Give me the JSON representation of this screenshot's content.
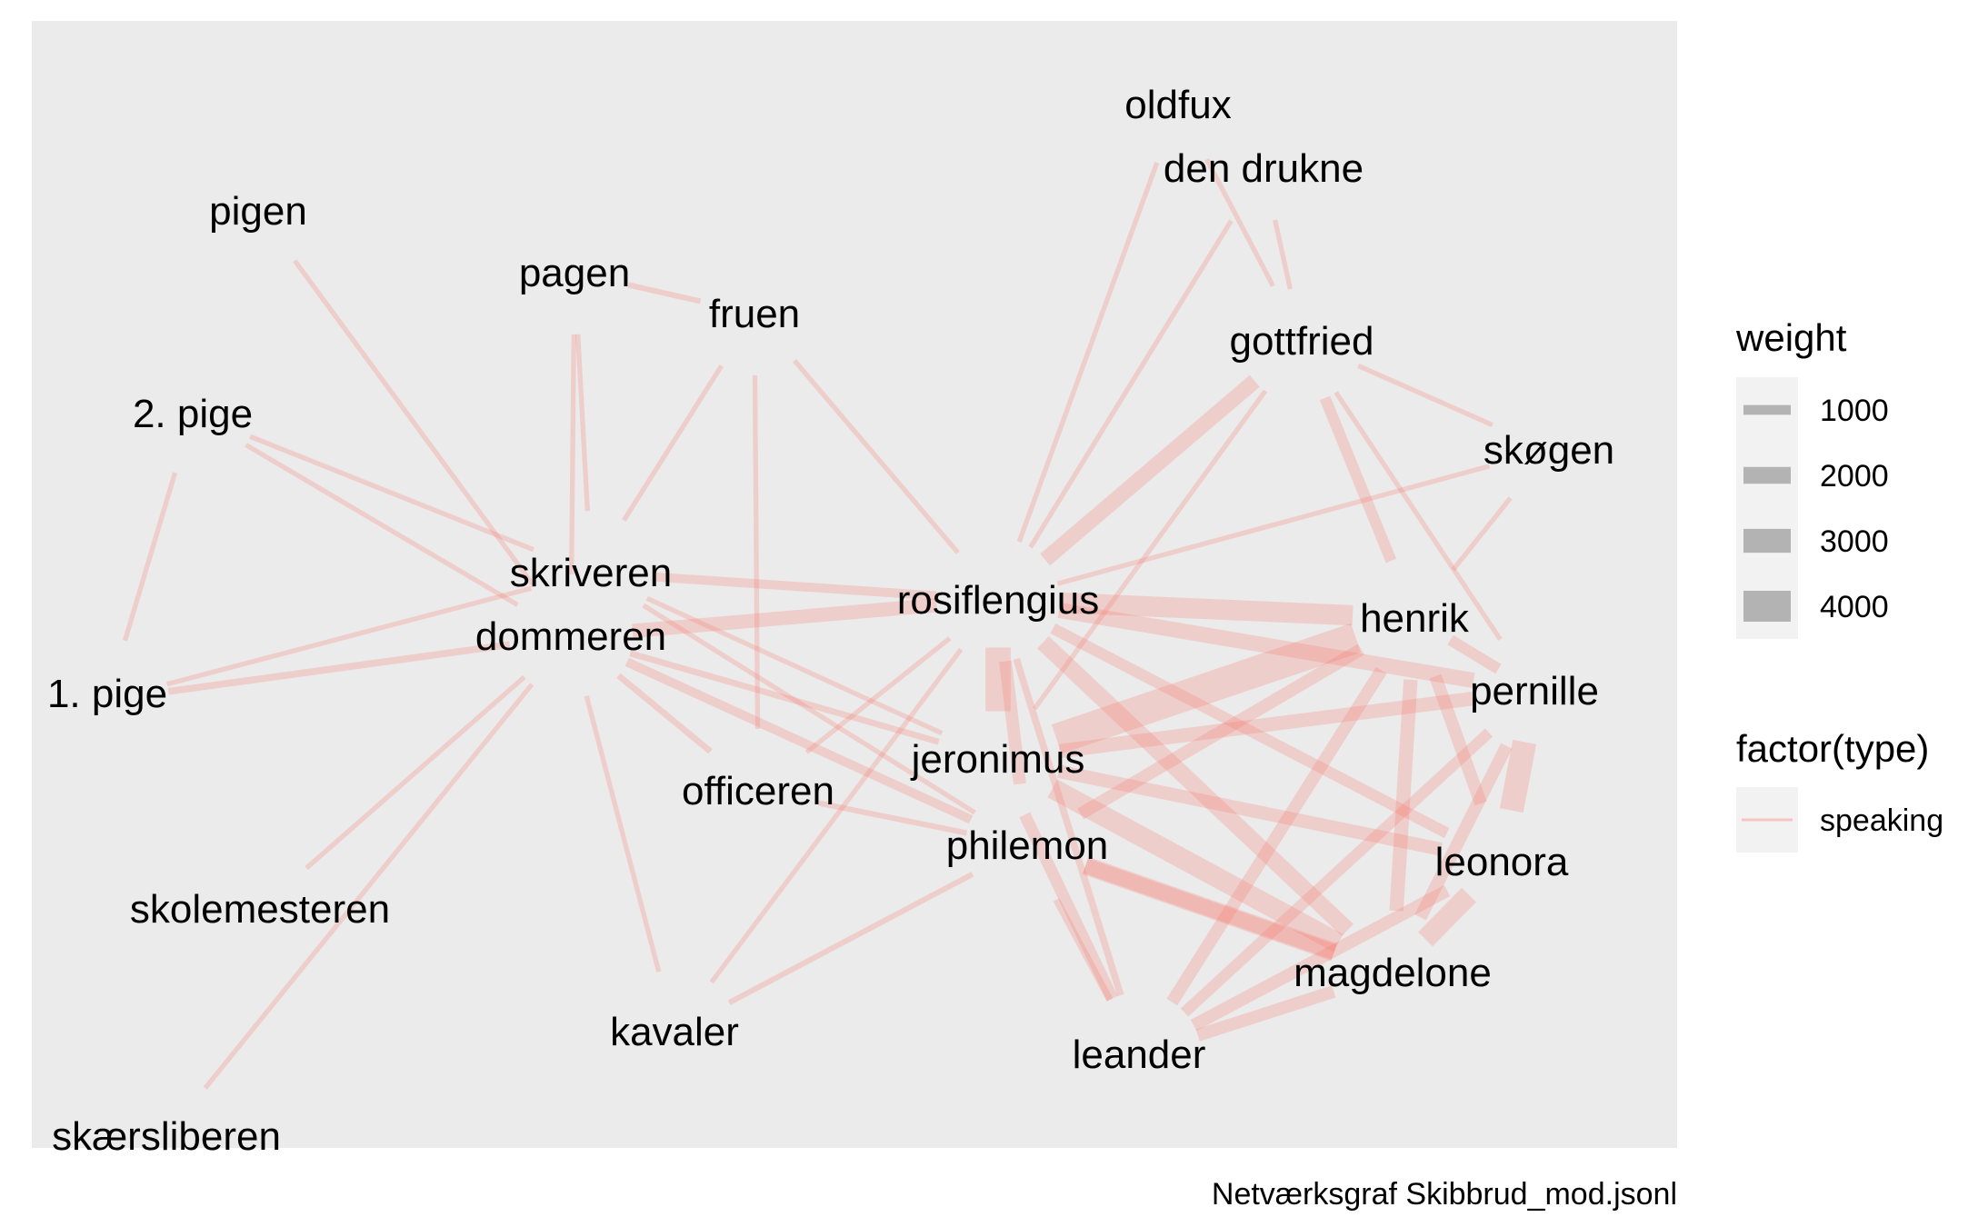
{
  "caption": "Netværksgraf Skibbrud_mod.jsonl",
  "colors": {
    "panel": "#ebebeb",
    "edge": "#f8766d",
    "legend_key": "#f2f2f2",
    "legend_swatch": "#b3b3b3"
  },
  "nodes": [
    {
      "id": "oldfux",
      "label": "oldfux"
    },
    {
      "id": "den_drukne",
      "label": "den drukne"
    },
    {
      "id": "pigen",
      "label": "pigen"
    },
    {
      "id": "pagen",
      "label": "pagen"
    },
    {
      "id": "fruen",
      "label": "fruen"
    },
    {
      "id": "gottfried",
      "label": "gottfried"
    },
    {
      "id": "skogen",
      "label": "skøgen"
    },
    {
      "id": "pige2",
      "label": "2. pige"
    },
    {
      "id": "skriveren",
      "label": "skriveren"
    },
    {
      "id": "rosiflengius",
      "label": "rosiflengius"
    },
    {
      "id": "henrik",
      "label": "henrik"
    },
    {
      "id": "dommeren",
      "label": "dommeren"
    },
    {
      "id": "pernille",
      "label": "pernille"
    },
    {
      "id": "pige1",
      "label": "1. pige"
    },
    {
      "id": "jeronimus",
      "label": "jeronimus"
    },
    {
      "id": "officeren",
      "label": "officeren"
    },
    {
      "id": "philemon",
      "label": "philemon"
    },
    {
      "id": "leonora",
      "label": "leonora"
    },
    {
      "id": "skolemesteren",
      "label": "skolemesteren"
    },
    {
      "id": "magdelone",
      "label": "magdelone"
    },
    {
      "id": "kavaler",
      "label": "kavaler"
    },
    {
      "id": "leander",
      "label": "leander"
    },
    {
      "id": "skaersliberen",
      "label": "skærsliberen"
    }
  ],
  "edges": [
    {
      "source": "pigen",
      "target": "dommeren",
      "weight": 300,
      "type": "speaking"
    },
    {
      "source": "pige2",
      "target": "pige1",
      "weight": 300,
      "type": "speaking"
    },
    {
      "source": "pige2",
      "target": "dommeren",
      "weight": 300,
      "type": "speaking"
    },
    {
      "source": "pige2",
      "target": "skriveren",
      "weight": 300,
      "type": "speaking"
    },
    {
      "source": "pige1",
      "target": "skriveren",
      "weight": 300,
      "type": "speaking"
    },
    {
      "source": "pige1",
      "target": "dommeren",
      "weight": 600,
      "type": "speaking"
    },
    {
      "source": "dommeren",
      "target": "skolemesteren",
      "weight": 300,
      "type": "speaking"
    },
    {
      "source": "dommeren",
      "target": "skaersliberen",
      "weight": 300,
      "type": "speaking"
    },
    {
      "source": "dommeren",
      "target": "kavaler",
      "weight": 300,
      "type": "speaking"
    },
    {
      "source": "dommeren",
      "target": "pagen",
      "weight": 300,
      "type": "speaking"
    },
    {
      "source": "dommeren",
      "target": "rosiflengius",
      "weight": 1600,
      "type": "speaking"
    },
    {
      "source": "dommeren",
      "target": "officeren",
      "weight": 500,
      "type": "speaking"
    },
    {
      "source": "dommeren",
      "target": "philemon",
      "weight": 900,
      "type": "speaking"
    },
    {
      "source": "dommeren",
      "target": "jeronimus",
      "weight": 500,
      "type": "speaking"
    },
    {
      "source": "pagen",
      "target": "fruen",
      "weight": 400,
      "type": "speaking"
    },
    {
      "source": "pagen",
      "target": "skriveren",
      "weight": 300,
      "type": "speaking"
    },
    {
      "source": "skriveren",
      "target": "fruen",
      "weight": 300,
      "type": "speaking"
    },
    {
      "source": "fruen",
      "target": "rosiflengius",
      "weight": 300,
      "type": "speaking"
    },
    {
      "source": "skriveren",
      "target": "rosiflengius",
      "weight": 900,
      "type": "speaking"
    },
    {
      "source": "skriveren",
      "target": "jeronimus",
      "weight": 300,
      "type": "speaking"
    },
    {
      "source": "skriveren",
      "target": "philemon",
      "weight": 300,
      "type": "speaking"
    },
    {
      "source": "fruen",
      "target": "officeren",
      "weight": 300,
      "type": "speaking"
    },
    {
      "source": "oldfux",
      "target": "rosiflengius",
      "weight": 300,
      "type": "speaking"
    },
    {
      "source": "den_drukne",
      "target": "rosiflengius",
      "weight": 300,
      "type": "speaking"
    },
    {
      "source": "oldfux",
      "target": "gottfried",
      "weight": 300,
      "type": "speaking"
    },
    {
      "source": "den_drukne",
      "target": "gottfried",
      "weight": 300,
      "type": "speaking"
    },
    {
      "source": "gottfried",
      "target": "rosiflengius",
      "weight": 1800,
      "type": "speaking"
    },
    {
      "source": "gottfried",
      "target": "skogen",
      "weight": 300,
      "type": "speaking"
    },
    {
      "source": "gottfried",
      "target": "henrik",
      "weight": 1200,
      "type": "speaking"
    },
    {
      "source": "gottfried",
      "target": "jeronimus",
      "weight": 300,
      "type": "speaking"
    },
    {
      "source": "gottfried",
      "target": "pernille",
      "weight": 300,
      "type": "speaking"
    },
    {
      "source": "skogen",
      "target": "rosiflengius",
      "weight": 300,
      "type": "speaking"
    },
    {
      "source": "skogen",
      "target": "henrik",
      "weight": 300,
      "type": "speaking"
    },
    {
      "source": "rosiflengius",
      "target": "jeronimus",
      "weight": 3200,
      "type": "speaking"
    },
    {
      "source": "rosiflengius",
      "target": "philemon",
      "weight": 1400,
      "type": "speaking"
    },
    {
      "source": "rosiflengius",
      "target": "officeren",
      "weight": 300,
      "type": "speaking"
    },
    {
      "source": "rosiflengius",
      "target": "kavaler",
      "weight": 300,
      "type": "speaking"
    },
    {
      "source": "rosiflengius",
      "target": "pernille",
      "weight": 1800,
      "type": "speaking"
    },
    {
      "source": "rosiflengius",
      "target": "henrik",
      "weight": 2500,
      "type": "speaking"
    },
    {
      "source": "rosiflengius",
      "target": "leonora",
      "weight": 1200,
      "type": "speaking"
    },
    {
      "source": "rosiflengius",
      "target": "magdelone",
      "weight": 2000,
      "type": "speaking"
    },
    {
      "source": "rosiflengius",
      "target": "leander",
      "weight": 600,
      "type": "speaking"
    },
    {
      "source": "jeronimus",
      "target": "henrik",
      "weight": 4000,
      "type": "speaking"
    },
    {
      "source": "jeronimus",
      "target": "leonora",
      "weight": 1500,
      "type": "speaking"
    },
    {
      "source": "jeronimus",
      "target": "magdelone",
      "weight": 2500,
      "type": "speaking"
    },
    {
      "source": "jeronimus",
      "target": "leander",
      "weight": 1300,
      "type": "speaking"
    },
    {
      "source": "jeronimus",
      "target": "pernille",
      "weight": 1600,
      "type": "speaking"
    },
    {
      "source": "officeren",
      "target": "philemon",
      "weight": 400,
      "type": "speaking"
    },
    {
      "source": "philemon",
      "target": "henrik",
      "weight": 1400,
      "type": "speaking"
    },
    {
      "source": "philemon",
      "target": "kavaler",
      "weight": 400,
      "type": "speaking"
    },
    {
      "source": "philemon",
      "target": "leander",
      "weight": 600,
      "type": "speaking"
    },
    {
      "source": "philemon",
      "target": "magdelone",
      "weight": 2200,
      "type": "speaking"
    },
    {
      "source": "henrik",
      "target": "leander",
      "weight": 1400,
      "type": "speaking"
    },
    {
      "source": "henrik",
      "target": "magdelone",
      "weight": 1600,
      "type": "speaking"
    },
    {
      "source": "henrik",
      "target": "pernille",
      "weight": 1200,
      "type": "speaking"
    },
    {
      "source": "henrik",
      "target": "leonora",
      "weight": 1400,
      "type": "speaking"
    },
    {
      "source": "pernille",
      "target": "magdelone",
      "weight": 1400,
      "type": "speaking"
    },
    {
      "source": "pernille",
      "target": "leander",
      "weight": 1200,
      "type": "speaking"
    },
    {
      "source": "leonora",
      "target": "magdelone",
      "weight": 2500,
      "type": "speaking"
    },
    {
      "source": "leonora",
      "target": "leander",
      "weight": 1400,
      "type": "speaking"
    },
    {
      "source": "leonora",
      "target": "pernille",
      "weight": 3000,
      "type": "speaking"
    },
    {
      "source": "magdelone",
      "target": "leander",
      "weight": 1400,
      "type": "speaking"
    },
    {
      "source": "magdelone",
      "target": "philemon",
      "weight": 1800,
      "type": "speaking"
    }
  ],
  "legend": {
    "weight_title": "weight",
    "weight_entries": [
      {
        "label": "1000",
        "value": 1000
      },
      {
        "label": "2000",
        "value": 2000
      },
      {
        "label": "3000",
        "value": 3000
      },
      {
        "label": "4000",
        "value": 4000
      }
    ],
    "type_title": "factor(type)",
    "type_entries": [
      {
        "label": "speaking"
      }
    ]
  }
}
